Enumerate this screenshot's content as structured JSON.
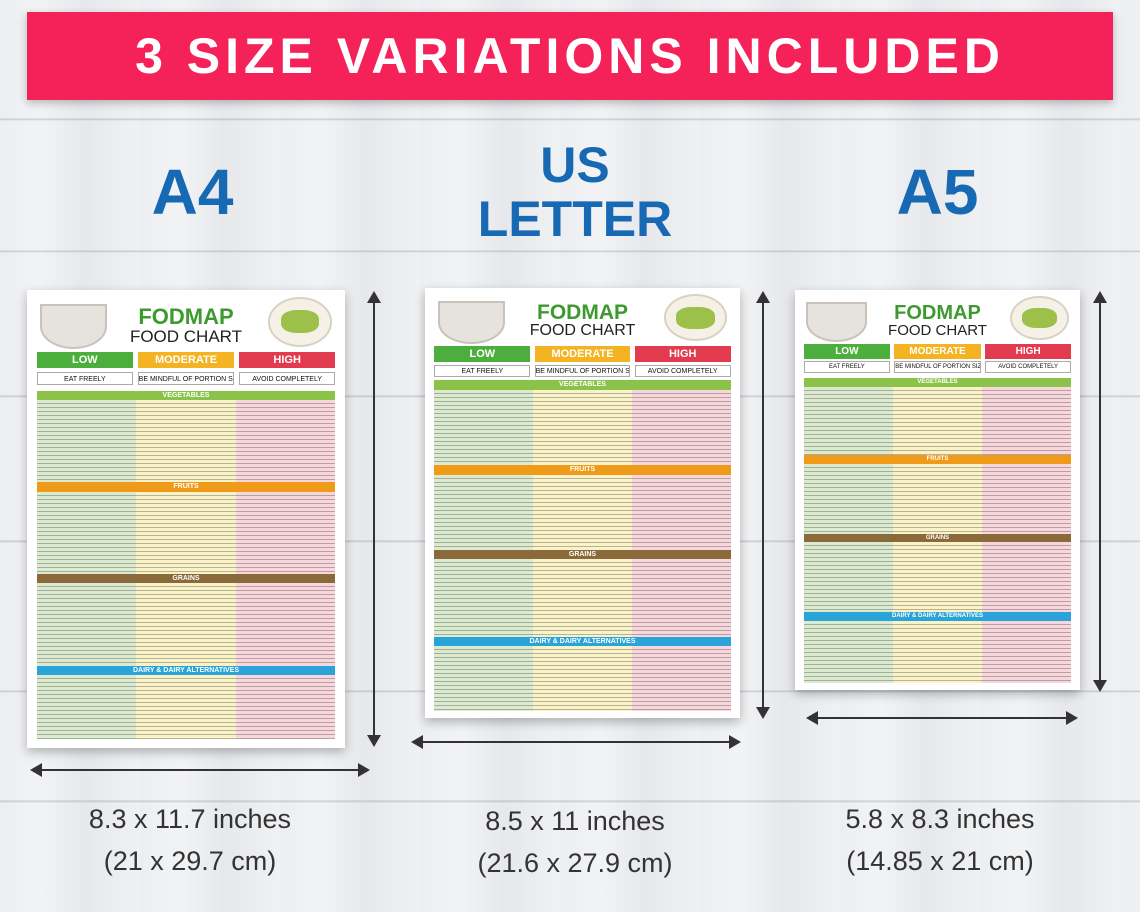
{
  "banner": {
    "text": "3 SIZE VARIATIONS INCLUDED",
    "color": "#f5225a"
  },
  "sizes": [
    {
      "title": "A4",
      "inches": "8.3 x 11.7 inches",
      "cm": "(21 x 29.7 cm)"
    },
    {
      "title_line1": "US",
      "title_line2": "LETTER",
      "inches": "8.5 x 11 inches",
      "cm": "(21.6 x 27.9 cm)"
    },
    {
      "title": "A5",
      "inches": "5.8 x 8.3 inches",
      "cm": "(14.85 x 21 cm)"
    }
  ],
  "chart": {
    "title": "FODMAP",
    "subtitle": "FOOD CHART",
    "columns": [
      "LOW",
      "MODERATE",
      "HIGH"
    ],
    "column_notes": [
      "EAT FREELY",
      "BE MINDFUL OF PORTION SIZE",
      "AVOID COMPLETELY"
    ],
    "sections": [
      "VEGETABLES",
      "FRUITS",
      "GRAINS",
      "DAIRY & DAIRY ALTERNATIVES"
    ]
  },
  "colors": {
    "title_blue": "#1769b4",
    "low": "#4caf3d",
    "moderate": "#f3b322",
    "high": "#e23a4e",
    "vegetables": "#8bc34a",
    "fruits": "#f09a1a",
    "grains": "#8a6a3b",
    "dairy": "#29a3d8"
  }
}
